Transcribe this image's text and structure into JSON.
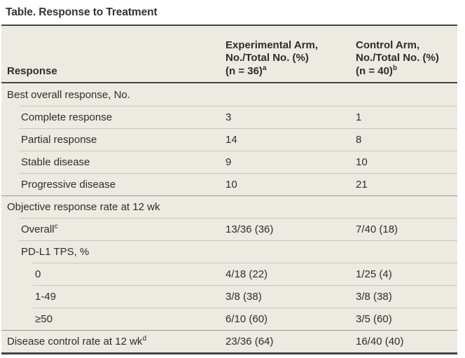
{
  "title": "Table. Response to Treatment",
  "colors": {
    "table_background": "#edeae1",
    "dark_rule": "#45443f",
    "hairline": "#c9c6bb",
    "section_line": "#9a978d",
    "text": "#2e2d29"
  },
  "header": {
    "response_label": "Response",
    "experimental": {
      "line1": "Experimental Arm,",
      "line2": "No./Total No. (%)",
      "line3": "(n = 36)",
      "sup": "a"
    },
    "control": {
      "line1": "Control Arm,",
      "line2": "No./Total No. (%)",
      "line3": "(n = 40)",
      "sup": "b"
    }
  },
  "rows": [
    {
      "label": "Best overall response, No.",
      "sup": "",
      "experimental": "",
      "control": ""
    },
    {
      "label": "Complete response",
      "sup": "",
      "experimental": "3",
      "control": "1"
    },
    {
      "label": "Partial response",
      "sup": "",
      "experimental": "14",
      "control": "8"
    },
    {
      "label": "Stable disease",
      "sup": "",
      "experimental": "9",
      "control": "10"
    },
    {
      "label": "Progressive disease",
      "sup": "",
      "experimental": "10",
      "control": "21"
    },
    {
      "label": "Objective response rate at 12 wk",
      "sup": "",
      "experimental": "",
      "control": ""
    },
    {
      "label": "Overall",
      "sup": "c",
      "experimental": "13/36 (36)",
      "control": "7/40 (18)"
    },
    {
      "label": "PD-L1 TPS, %",
      "sup": "",
      "experimental": "",
      "control": ""
    },
    {
      "label": "0",
      "sup": "",
      "experimental": "4/18 (22)",
      "control": "1/25 (4)"
    },
    {
      "label": "1-49",
      "sup": "",
      "experimental": "3/8 (38)",
      "control": "3/8 (38)"
    },
    {
      "label": "≥50",
      "sup": "",
      "experimental": "6/10 (60)",
      "control": "3/5 (60)"
    },
    {
      "label": "Disease control rate at 12 wk",
      "sup": "d",
      "experimental": "23/36 (64)",
      "control": "16/40 (40)"
    }
  ],
  "chart_data": {
    "type": "table",
    "title": "Table. Response to Treatment",
    "columns": [
      "Response",
      "Experimental Arm, No./Total No. (%) (n = 36)",
      "Control Arm, No./Total No. (%) (n = 40)"
    ],
    "rows": [
      [
        "Best overall response, No.",
        "",
        ""
      ],
      [
        "Complete response",
        "3",
        "1"
      ],
      [
        "Partial response",
        "14",
        "8"
      ],
      [
        "Stable disease",
        "9",
        "10"
      ],
      [
        "Progressive disease",
        "10",
        "21"
      ],
      [
        "Objective response rate at 12 wk",
        "",
        ""
      ],
      [
        "Overall",
        "13/36 (36)",
        "7/40 (18)"
      ],
      [
        "PD-L1 TPS, %",
        "",
        ""
      ],
      [
        "0",
        "4/18 (22)",
        "1/25 (4)"
      ],
      [
        "1-49",
        "3/8 (38)",
        "3/8 (38)"
      ],
      [
        "≥50",
        "6/10 (60)",
        "3/5 (60)"
      ],
      [
        "Disease control rate at 12 wk",
        "23/36 (64)",
        "16/40 (40)"
      ]
    ]
  }
}
